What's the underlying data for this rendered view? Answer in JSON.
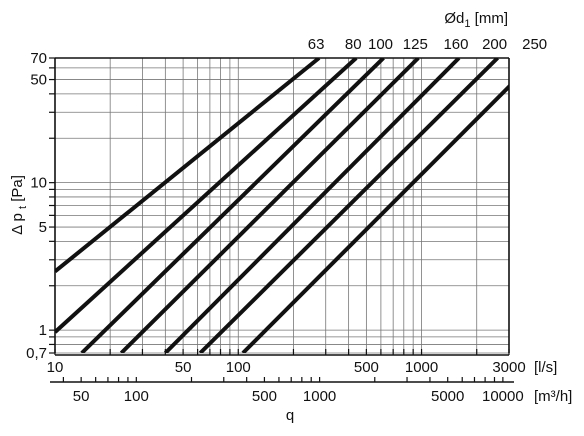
{
  "chart_data": {
    "type": "line",
    "scale": "log-log",
    "grid": true,
    "y_label_prefix": "Δ p",
    "y_label_sub": "t",
    "y_label_unit": "[Pa]",
    "y_ticks": [
      "70",
      "50",
      "10",
      "5",
      "1",
      "0,7"
    ],
    "y_tick_values": [
      70,
      50,
      10,
      5,
      1,
      0.7
    ],
    "ylim": [
      0.7,
      70
    ],
    "x_ticks": [
      "10",
      "50",
      "100",
      "500",
      "1000",
      "3000"
    ],
    "x_tick_values": [
      10,
      50,
      100,
      500,
      1000,
      3000
    ],
    "x_unit": "[l/s]",
    "xlim": [
      10,
      3000
    ],
    "x2_ticks": [
      "50",
      "100",
      "500",
      "1000",
      "5000",
      "10000"
    ],
    "x2_tick_values": [
      50,
      100,
      500,
      1000,
      5000,
      10000
    ],
    "x2_unit": "[m³/h]",
    "x2_label": "q",
    "series_label_prefix": "Ød",
    "series_label_sub": "1",
    "series_label_unit": "[mm]",
    "series": [
      {
        "name": "63",
        "x": [
          10,
          276
        ],
        "y": [
          2.5,
          70
        ]
      },
      {
        "name": "80",
        "x": [
          10,
          440
        ],
        "y": [
          0.97,
          70
        ]
      },
      {
        "name": "100",
        "x": [
          14,
          620
        ],
        "y": [
          0.7,
          70
        ]
      },
      {
        "name": "125",
        "x": [
          23,
          960
        ],
        "y": [
          0.7,
          70
        ]
      },
      {
        "name": "160",
        "x": [
          40,
          1600
        ],
        "y": [
          0.7,
          70
        ]
      },
      {
        "name": "200",
        "x": [
          62,
          2600
        ],
        "y": [
          0.7,
          70
        ]
      },
      {
        "name": "250",
        "x": [
          106,
          4300
        ],
        "y": [
          0.7,
          70
        ]
      }
    ]
  }
}
